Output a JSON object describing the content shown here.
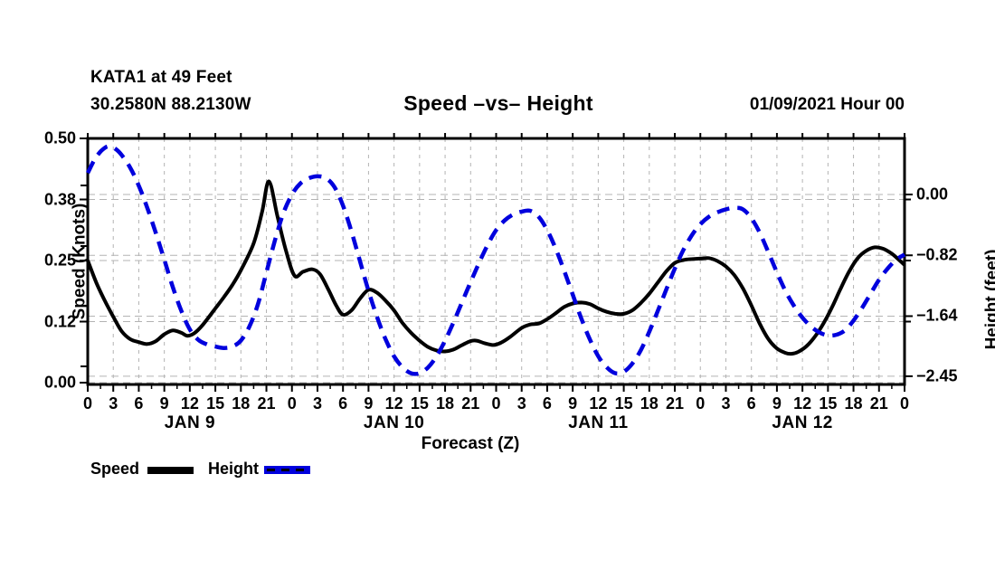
{
  "header": {
    "station_line1": "KATA1 at 49 Feet",
    "station_line2": "30.2580N 88.2130W",
    "title": "Speed –vs– Height",
    "datetime": "01/09/2021 Hour 00"
  },
  "colors": {
    "speed": "#000000",
    "height": "#0000dd",
    "grid": "#b3b3b3",
    "frame": "#000000",
    "background": "#ffffff"
  },
  "legend": [
    {
      "label": "Speed",
      "style": "solid-black-line"
    },
    {
      "label": "Height",
      "style": "dashed-blue-line"
    }
  ],
  "chart_data": {
    "type": "line",
    "title": "Speed –vs– Height",
    "xlabel": "Forecast (Z)",
    "grid": true,
    "legend_position": "bottom-left",
    "x_range_hours": [
      0,
      96
    ],
    "x_major_tick_hours": 3,
    "x_minor_tick_hours": 1.5,
    "x_axis": {
      "hour_labels": [
        "0",
        "3",
        "6",
        "9",
        "12",
        "15",
        "18",
        "21",
        "0",
        "3",
        "6",
        "9",
        "12",
        "15",
        "18",
        "21",
        "0",
        "3",
        "6",
        "9",
        "12",
        "15",
        "18",
        "21",
        "0",
        "3",
        "6",
        "9",
        "12",
        "15",
        "18",
        "21",
        "0"
      ],
      "day_labels": [
        {
          "label": "JAN 9",
          "center_hour": 12
        },
        {
          "label": "JAN 10",
          "center_hour": 36
        },
        {
          "label": "JAN 11",
          "center_hour": 60
        },
        {
          "label": "JAN 12",
          "center_hour": 84
        }
      ]
    },
    "left_axis": {
      "label": "Speed (Knots)",
      "units": "knots",
      "range": [
        0.0,
        0.5
      ],
      "ticks": [
        0.5,
        0.375,
        0.25,
        0.125,
        0
      ],
      "tick_labels": [
        "0.50",
        "0.38",
        "0.25",
        "0.12",
        "0.00"
      ]
    },
    "right_axis": {
      "label": "Height (feet)",
      "units": "feet",
      "ticks": [
        0,
        -0.82,
        -1.64,
        -2.45
      ],
      "tick_labels": [
        "0.00",
        "−0.82",
        "−1.64",
        "−2.45"
      ]
    },
    "series": [
      {
        "name": "Speed",
        "axis": "left",
        "color": "#000000",
        "style": "solid",
        "points": [
          [
            0,
            0.25
          ],
          [
            1,
            0.205
          ],
          [
            2,
            0.168
          ],
          [
            3,
            0.135
          ],
          [
            4,
            0.105
          ],
          [
            5,
            0.089
          ],
          [
            6,
            0.083
          ],
          [
            7,
            0.079
          ],
          [
            8,
            0.085
          ],
          [
            9,
            0.099
          ],
          [
            10,
            0.107
          ],
          [
            11,
            0.102
          ],
          [
            11.7,
            0.096
          ],
          [
            12.5,
            0.101
          ],
          [
            13.5,
            0.118
          ],
          [
            15,
            0.152
          ],
          [
            16,
            0.175
          ],
          [
            17,
            0.2
          ],
          [
            18,
            0.23
          ],
          [
            19.5,
            0.285
          ],
          [
            20.5,
            0.35
          ],
          [
            21.3,
            0.412
          ],
          [
            22.3,
            0.34
          ],
          [
            23.3,
            0.27
          ],
          [
            24.3,
            0.219
          ],
          [
            25.3,
            0.227
          ],
          [
            26.4,
            0.232
          ],
          [
            27.3,
            0.222
          ],
          [
            28.3,
            0.19
          ],
          [
            29.2,
            0.158
          ],
          [
            30,
            0.139
          ],
          [
            31,
            0.148
          ],
          [
            32,
            0.172
          ],
          [
            33,
            0.19
          ],
          [
            34,
            0.184
          ],
          [
            35,
            0.168
          ],
          [
            36,
            0.148
          ],
          [
            37,
            0.122
          ],
          [
            38,
            0.102
          ],
          [
            39,
            0.086
          ],
          [
            40,
            0.073
          ],
          [
            41,
            0.066
          ],
          [
            42,
            0.064
          ],
          [
            43,
            0.068
          ],
          [
            44,
            0.077
          ],
          [
            45,
            0.085
          ],
          [
            45.7,
            0.086
          ],
          [
            46.6,
            0.081
          ],
          [
            47.7,
            0.077
          ],
          [
            48.6,
            0.082
          ],
          [
            49.6,
            0.093
          ],
          [
            51,
            0.112
          ],
          [
            52,
            0.119
          ],
          [
            53,
            0.121
          ],
          [
            54,
            0.13
          ],
          [
            55,
            0.142
          ],
          [
            56,
            0.155
          ],
          [
            57,
            0.162
          ],
          [
            58,
            0.164
          ],
          [
            59,
            0.161
          ],
          [
            60,
            0.152
          ],
          [
            61,
            0.145
          ],
          [
            62,
            0.141
          ],
          [
            63,
            0.141
          ],
          [
            64,
            0.148
          ],
          [
            65,
            0.163
          ],
          [
            66,
            0.182
          ],
          [
            67,
            0.205
          ],
          [
            68,
            0.228
          ],
          [
            69,
            0.245
          ],
          [
            70,
            0.251
          ],
          [
            71,
            0.253
          ],
          [
            72,
            0.254
          ],
          [
            73,
            0.255
          ],
          [
            74,
            0.249
          ],
          [
            75,
            0.238
          ],
          [
            76,
            0.22
          ],
          [
            77,
            0.193
          ],
          [
            78,
            0.158
          ],
          [
            79,
            0.12
          ],
          [
            80,
            0.089
          ],
          [
            81,
            0.07
          ],
          [
            82,
            0.061
          ],
          [
            82.7,
            0.059
          ],
          [
            83.5,
            0.063
          ],
          [
            84.5,
            0.075
          ],
          [
            85.5,
            0.095
          ],
          [
            86.5,
            0.122
          ],
          [
            87.5,
            0.155
          ],
          [
            88.5,
            0.193
          ],
          [
            89.5,
            0.228
          ],
          [
            90.5,
            0.255
          ],
          [
            91.5,
            0.27
          ],
          [
            92.5,
            0.277
          ],
          [
            93.5,
            0.274
          ],
          [
            94.5,
            0.264
          ],
          [
            95.3,
            0.252
          ],
          [
            96,
            0.241
          ]
        ]
      },
      {
        "name": "Height",
        "axis": "right",
        "color": "#0000dd",
        "style": "dashed",
        "points": [
          [
            0,
            0.29
          ],
          [
            0.8,
            0.47
          ],
          [
            1.6,
            0.59
          ],
          [
            2.4,
            0.65
          ],
          [
            3.2,
            0.62
          ],
          [
            4,
            0.53
          ],
          [
            5,
            0.36
          ],
          [
            6,
            0.12
          ],
          [
            7,
            -0.18
          ],
          [
            8,
            -0.52
          ],
          [
            9,
            -0.88
          ],
          [
            10,
            -1.25
          ],
          [
            11,
            -1.57
          ],
          [
            12,
            -1.82
          ],
          [
            13,
            -1.96
          ],
          [
            14,
            -2.02
          ],
          [
            15,
            -2.05
          ],
          [
            16,
            -2.07
          ],
          [
            17,
            -2.05
          ],
          [
            18,
            -1.97
          ],
          [
            19,
            -1.78
          ],
          [
            20,
            -1.48
          ],
          [
            21,
            -1.05
          ],
          [
            22,
            -0.62
          ],
          [
            23,
            -0.25
          ],
          [
            24,
            0.0
          ],
          [
            25,
            0.15
          ],
          [
            26,
            0.22
          ],
          [
            27,
            0.245
          ],
          [
            28,
            0.22
          ],
          [
            29,
            0.1
          ],
          [
            30,
            -0.15
          ],
          [
            31,
            -0.5
          ],
          [
            32,
            -0.9
          ],
          [
            33,
            -1.3
          ],
          [
            34,
            -1.65
          ],
          [
            35,
            -1.95
          ],
          [
            36,
            -2.18
          ],
          [
            37,
            -2.33
          ],
          [
            38,
            -2.41
          ],
          [
            39,
            -2.41
          ],
          [
            40,
            -2.33
          ],
          [
            41,
            -2.18
          ],
          [
            42,
            -1.97
          ],
          [
            43,
            -1.72
          ],
          [
            44,
            -1.45
          ],
          [
            45,
            -1.18
          ],
          [
            46,
            -0.92
          ],
          [
            47,
            -0.68
          ],
          [
            48,
            -0.48
          ],
          [
            49,
            -0.35
          ],
          [
            50,
            -0.27
          ],
          [
            51,
            -0.23
          ],
          [
            52,
            -0.22
          ],
          [
            53,
            -0.3
          ],
          [
            54,
            -0.48
          ],
          [
            55,
            -0.73
          ],
          [
            56,
            -1.03
          ],
          [
            57,
            -1.35
          ],
          [
            58,
            -1.67
          ],
          [
            59,
            -1.95
          ],
          [
            60,
            -2.18
          ],
          [
            61,
            -2.33
          ],
          [
            62,
            -2.41
          ],
          [
            63,
            -2.39
          ],
          [
            64,
            -2.28
          ],
          [
            65,
            -2.1
          ],
          [
            66,
            -1.85
          ],
          [
            67,
            -1.57
          ],
          [
            68,
            -1.28
          ],
          [
            69,
            -1.0
          ],
          [
            70,
            -0.75
          ],
          [
            71,
            -0.55
          ],
          [
            72,
            -0.4
          ],
          [
            73,
            -0.3
          ],
          [
            74,
            -0.24
          ],
          [
            75,
            -0.2
          ],
          [
            76,
            -0.18
          ],
          [
            77,
            -0.2
          ],
          [
            78,
            -0.32
          ],
          [
            79,
            -0.52
          ],
          [
            80,
            -0.78
          ],
          [
            81,
            -1.05
          ],
          [
            82,
            -1.3
          ],
          [
            83,
            -1.5
          ],
          [
            84,
            -1.66
          ],
          [
            85,
            -1.78
          ],
          [
            86,
            -1.86
          ],
          [
            87,
            -1.9
          ],
          [
            88,
            -1.89
          ],
          [
            89,
            -1.83
          ],
          [
            90,
            -1.7
          ],
          [
            91,
            -1.53
          ],
          [
            92,
            -1.34
          ],
          [
            93,
            -1.15
          ],
          [
            94,
            -1.0
          ],
          [
            95,
            -0.88
          ],
          [
            96,
            -0.81
          ]
        ]
      }
    ]
  }
}
